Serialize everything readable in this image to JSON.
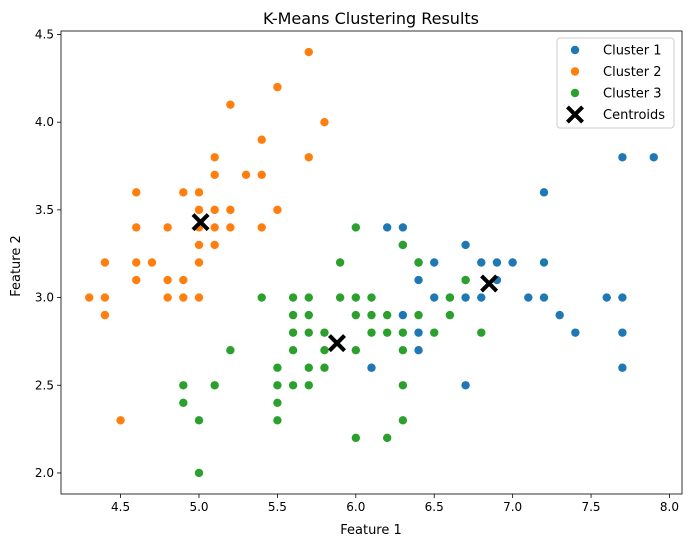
{
  "chart_data": {
    "type": "scatter",
    "title": "K-Means Clustering Results",
    "xlabel": "Feature 1",
    "ylabel": "Feature 2",
    "xlim": [
      4.12,
      8.08
    ],
    "ylim": [
      1.88,
      4.52
    ],
    "xticks": [
      "4.5",
      "5.0",
      "5.5",
      "6.0",
      "6.5",
      "7.0",
      "7.5",
      "8.0"
    ],
    "yticks": [
      "2.0",
      "2.5",
      "3.0",
      "3.5",
      "4.0",
      "4.5"
    ],
    "grid": false,
    "legend_position": "top-right",
    "series": [
      {
        "name": "Cluster 1",
        "color": "#1f77b4",
        "marker": "circle",
        "points": [
          [
            6.2,
            3.4
          ],
          [
            6.3,
            3.4
          ],
          [
            6.3,
            3.3
          ],
          [
            6.4,
            3.2
          ],
          [
            6.4,
            3.1
          ],
          [
            6.5,
            3.2
          ],
          [
            6.5,
            3.0
          ],
          [
            6.6,
            3.0
          ],
          [
            6.7,
            3.3
          ],
          [
            6.7,
            3.1
          ],
          [
            6.7,
            3.0
          ],
          [
            6.8,
            3.2
          ],
          [
            6.8,
            3.0
          ],
          [
            6.9,
            3.2
          ],
          [
            6.9,
            3.1
          ],
          [
            7.0,
            3.2
          ],
          [
            7.1,
            3.0
          ],
          [
            7.2,
            3.6
          ],
          [
            7.2,
            3.2
          ],
          [
            7.2,
            3.0
          ],
          [
            7.3,
            2.9
          ],
          [
            7.4,
            2.8
          ],
          [
            7.6,
            3.0
          ],
          [
            7.7,
            3.8
          ],
          [
            7.7,
            3.0
          ],
          [
            7.7,
            2.8
          ],
          [
            7.7,
            2.6
          ],
          [
            7.9,
            3.8
          ],
          [
            6.1,
            2.6
          ],
          [
            6.3,
            2.9
          ],
          [
            6.4,
            2.8
          ],
          [
            6.4,
            2.7
          ],
          [
            6.7,
            2.5
          ]
        ]
      },
      {
        "name": "Cluster 2",
        "color": "#ff7f0e",
        "marker": "circle",
        "points": [
          [
            4.3,
            3.0
          ],
          [
            4.4,
            3.2
          ],
          [
            4.4,
            3.0
          ],
          [
            4.4,
            2.9
          ],
          [
            4.5,
            2.3
          ],
          [
            4.6,
            3.6
          ],
          [
            4.6,
            3.4
          ],
          [
            4.6,
            3.2
          ],
          [
            4.6,
            3.1
          ],
          [
            4.7,
            3.2
          ],
          [
            4.8,
            3.4
          ],
          [
            4.8,
            3.1
          ],
          [
            4.8,
            3.0
          ],
          [
            4.9,
            3.6
          ],
          [
            4.9,
            3.1
          ],
          [
            4.9,
            3.0
          ],
          [
            5.0,
            3.6
          ],
          [
            5.0,
            3.5
          ],
          [
            5.0,
            3.4
          ],
          [
            5.0,
            3.3
          ],
          [
            5.0,
            3.2
          ],
          [
            5.0,
            3.0
          ],
          [
            5.1,
            3.8
          ],
          [
            5.1,
            3.7
          ],
          [
            5.1,
            3.5
          ],
          [
            5.1,
            3.4
          ],
          [
            5.1,
            3.3
          ],
          [
            5.2,
            4.1
          ],
          [
            5.2,
            3.5
          ],
          [
            5.2,
            3.4
          ],
          [
            5.3,
            3.7
          ],
          [
            5.4,
            3.9
          ],
          [
            5.4,
            3.7
          ],
          [
            5.4,
            3.4
          ],
          [
            5.5,
            4.2
          ],
          [
            5.5,
            3.5
          ],
          [
            5.7,
            4.4
          ],
          [
            5.7,
            3.8
          ],
          [
            5.8,
            4.0
          ]
        ]
      },
      {
        "name": "Cluster 3",
        "color": "#2ca02c",
        "marker": "circle",
        "points": [
          [
            4.9,
            2.5
          ],
          [
            4.9,
            2.4
          ],
          [
            5.0,
            2.3
          ],
          [
            5.0,
            2.0
          ],
          [
            5.1,
            2.5
          ],
          [
            5.2,
            2.7
          ],
          [
            5.4,
            3.0
          ],
          [
            5.5,
            2.6
          ],
          [
            5.5,
            2.5
          ],
          [
            5.5,
            2.4
          ],
          [
            5.5,
            2.3
          ],
          [
            5.6,
            3.0
          ],
          [
            5.6,
            2.9
          ],
          [
            5.6,
            2.8
          ],
          [
            5.6,
            2.7
          ],
          [
            5.6,
            2.5
          ],
          [
            5.7,
            3.0
          ],
          [
            5.7,
            2.9
          ],
          [
            5.7,
            2.8
          ],
          [
            5.7,
            2.6
          ],
          [
            5.7,
            2.5
          ],
          [
            5.8,
            2.8
          ],
          [
            5.8,
            2.7
          ],
          [
            5.8,
            2.6
          ],
          [
            5.9,
            3.2
          ],
          [
            5.9,
            3.0
          ],
          [
            6.0,
            3.4
          ],
          [
            6.0,
            3.0
          ],
          [
            6.0,
            2.9
          ],
          [
            6.0,
            2.7
          ],
          [
            6.0,
            2.2
          ],
          [
            6.1,
            3.0
          ],
          [
            6.1,
            2.9
          ],
          [
            6.1,
            2.8
          ],
          [
            6.2,
            2.9
          ],
          [
            6.2,
            2.8
          ],
          [
            6.2,
            2.2
          ],
          [
            6.3,
            3.3
          ],
          [
            6.3,
            2.8
          ],
          [
            6.3,
            2.7
          ],
          [
            6.3,
            2.5
          ],
          [
            6.3,
            2.3
          ],
          [
            6.4,
            3.2
          ],
          [
            6.4,
            2.9
          ],
          [
            6.5,
            2.8
          ],
          [
            6.6,
            3.0
          ],
          [
            6.6,
            2.9
          ],
          [
            6.7,
            3.1
          ],
          [
            6.8,
            2.8
          ]
        ]
      },
      {
        "name": "Centroids",
        "color": "#000000",
        "marker": "x",
        "points": [
          [
            5.01,
            3.43
          ],
          [
            5.88,
            2.74
          ],
          [
            6.85,
            3.08
          ]
        ]
      }
    ]
  }
}
